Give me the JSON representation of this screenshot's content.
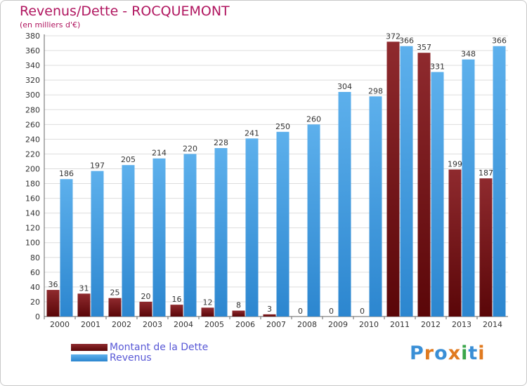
{
  "header": {
    "title": "Revenus/Dette - ROCQUEMONT",
    "subtitle": "(en milliers d'€)"
  },
  "legend": [
    {
      "label": "Montant de la Dette",
      "color": "#7a0f12"
    },
    {
      "label": "Revenus",
      "color": "#4fa6e6"
    }
  ],
  "logo": {
    "text": "Proxiti"
  },
  "colors": {
    "dette": "#7a0f12",
    "revenus": "#4fa6e6",
    "title": "#b0155f",
    "legend_text": "#5858d6"
  },
  "chart_data": {
    "type": "bar",
    "title": "Revenus/Dette - ROCQUEMONT",
    "subtitle": "(en milliers d'€)",
    "categories": [
      "2000",
      "2001",
      "2002",
      "2003",
      "2004",
      "2005",
      "2006",
      "2007",
      "2008",
      "2009",
      "2010",
      "2011",
      "2012",
      "2013",
      "2014"
    ],
    "series": [
      {
        "name": "Montant de la Dette",
        "values": [
          36,
          31,
          25,
          20,
          16,
          12,
          8,
          3,
          0,
          0,
          0,
          372,
          357,
          199,
          187
        ]
      },
      {
        "name": "Revenus",
        "values": [
          186,
          197,
          205,
          214,
          220,
          228,
          241,
          250,
          260,
          304,
          298,
          366,
          331,
          348,
          366
        ]
      }
    ],
    "ylim": [
      0,
      380
    ],
    "yticks": [
      0,
      20,
      40,
      60,
      80,
      100,
      120,
      140,
      160,
      180,
      200,
      220,
      240,
      260,
      280,
      300,
      320,
      340,
      360,
      380
    ],
    "grid": true,
    "legend_position": "bottom-left"
  }
}
